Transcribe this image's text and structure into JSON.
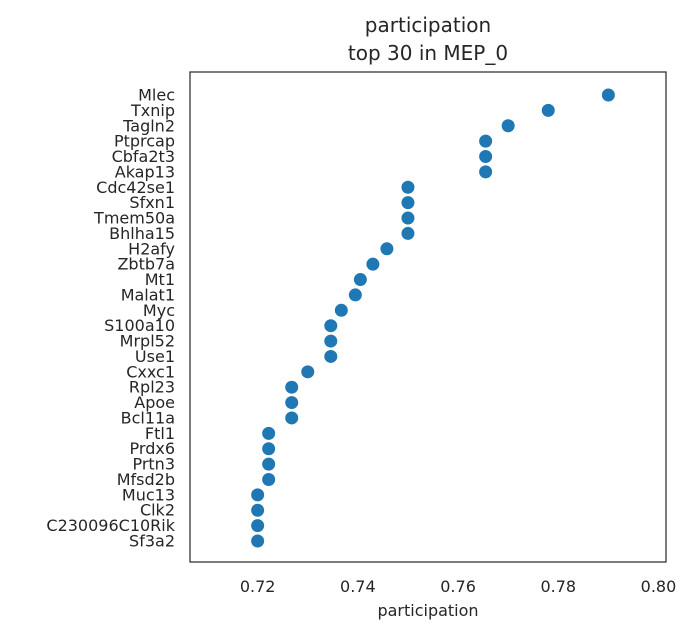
{
  "chart_data": {
    "type": "scatter",
    "title_lines": [
      "participation",
      "top 30 in MEP_0"
    ],
    "xlabel": "participation",
    "ylabel": "",
    "xlim": [
      0.7065,
      0.8015
    ],
    "xticks": [
      "0.72",
      "0.74",
      "0.76",
      "0.78",
      "0.80"
    ],
    "xtick_values": [
      0.72,
      0.74,
      0.76,
      0.78,
      0.8
    ],
    "grid": false,
    "legend": "none",
    "point_color": "#1f77b4",
    "categories": [
      "Mlec",
      "Txnip",
      "Tagln2",
      "Ptprcap",
      "Cbfa2t3",
      "Akap13",
      "Cdc42se1",
      "Sfxn1",
      "Tmem50a",
      "Bhlha15",
      "H2afy",
      "Zbtb7a",
      "Mt1",
      "Malat1",
      "Myc",
      "S100a10",
      "Mrpl52",
      "Use1",
      "Cxxc1",
      "Rpl23",
      "Apoe",
      "Bcl11a",
      "Ftl1",
      "Prdx6",
      "Prtn3",
      "Mfsd2b",
      "Muc13",
      "Clk2",
      "C230096C10Rik",
      "Sf3a2"
    ],
    "values": [
      0.79,
      0.778,
      0.77,
      0.7655,
      0.7655,
      0.7655,
      0.75,
      0.75,
      0.75,
      0.75,
      0.7458,
      0.743,
      0.7405,
      0.7395,
      0.7367,
      0.7346,
      0.7346,
      0.7346,
      0.73,
      0.7268,
      0.7268,
      0.7268,
      0.7222,
      0.7222,
      0.7222,
      0.7222,
      0.72,
      0.72,
      0.72,
      0.72
    ]
  }
}
